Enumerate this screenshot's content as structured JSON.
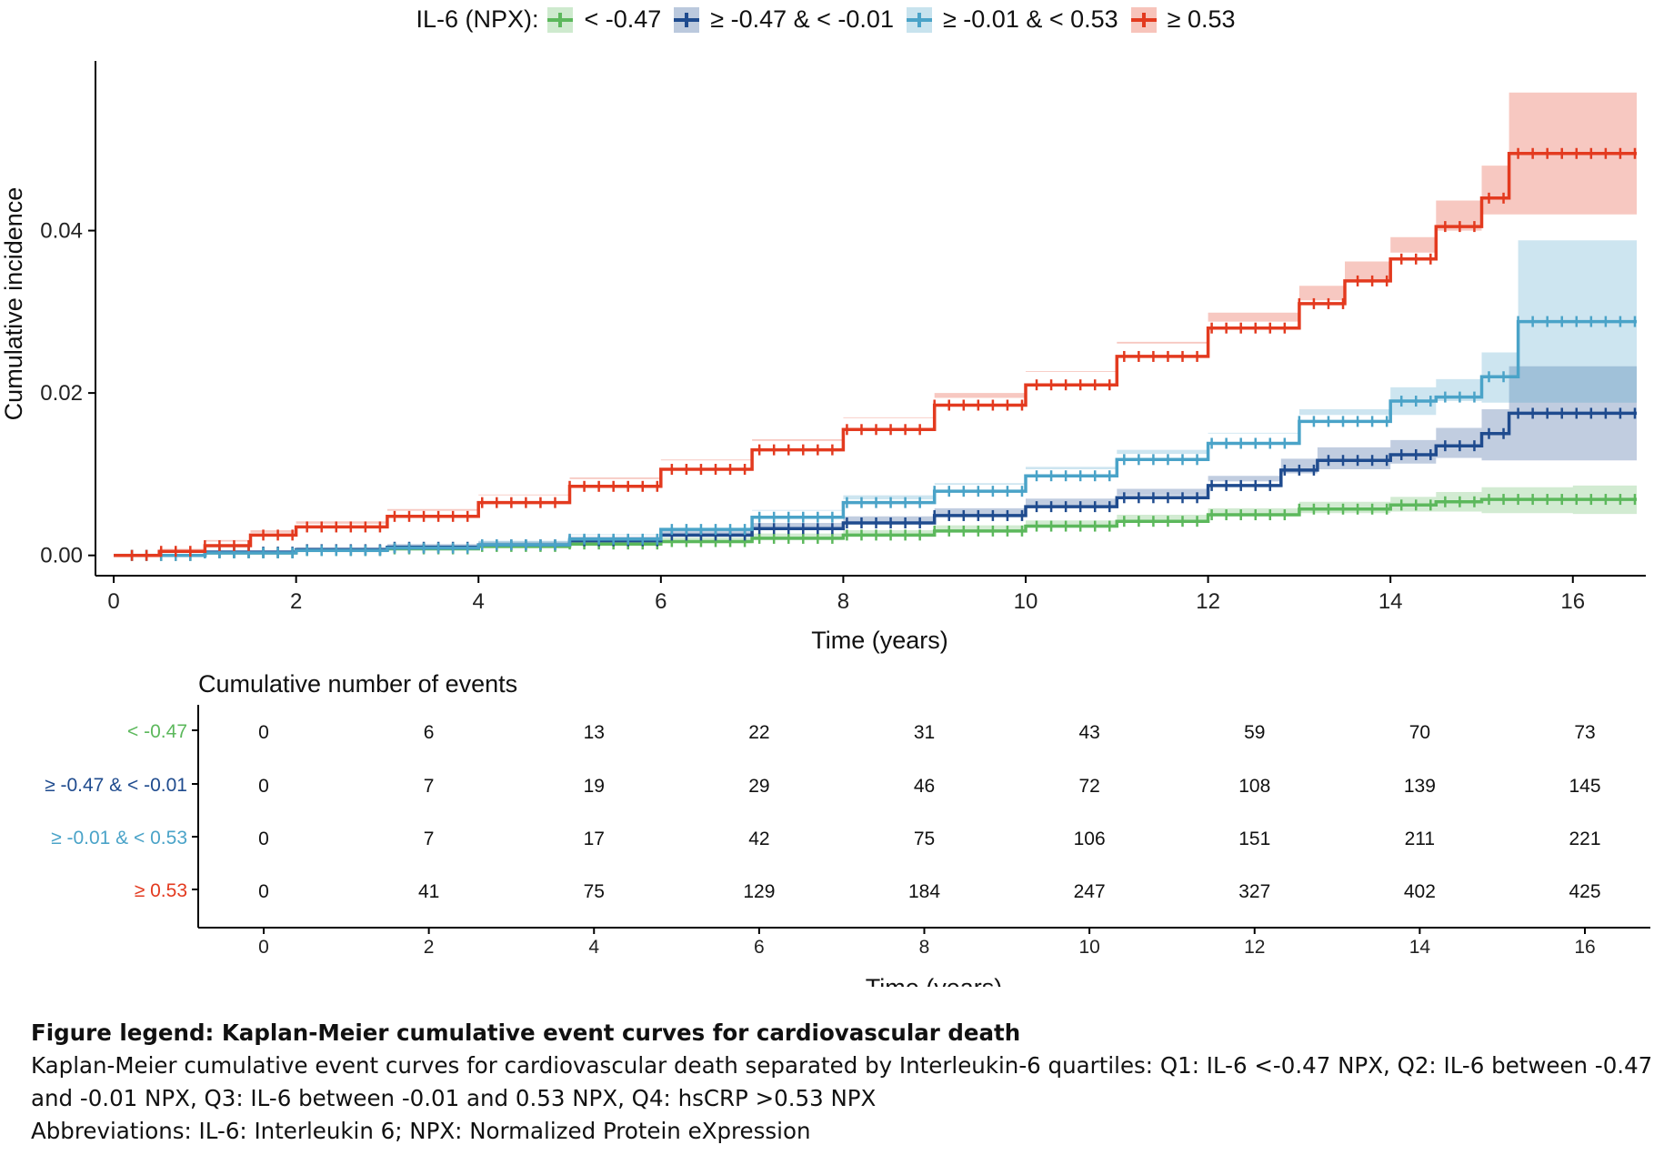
{
  "legend": {
    "title": "IL-6 (NPX):",
    "entries": [
      {
        "label": "< -0.47",
        "color": "#5cb85c"
      },
      {
        "label": "≥ -0.47 & < -0.01",
        "color": "#1f4b8e"
      },
      {
        "label": "≥ -0.01 & < 0.53",
        "color": "#4aa3c8"
      },
      {
        "label": "≥ 0.53",
        "color": "#e33a1f"
      }
    ]
  },
  "chart_data": [
    {
      "type": "line",
      "title": "",
      "xlabel": "Time (years)",
      "ylabel": "Cumulative incidence",
      "xlim": [
        -0.2,
        16.8
      ],
      "ylim": [
        -0.0025,
        0.06
      ],
      "xticks": [
        0,
        2,
        4,
        6,
        8,
        10,
        12,
        14,
        16
      ],
      "yticks": [
        0.0,
        0.02,
        0.04
      ],
      "ytick_labels": [
        "0.00",
        "0.02",
        "0.04"
      ],
      "legend_position": "top",
      "grid": false,
      "series": [
        {
          "name": "< -0.47",
          "color": "#5cb85c",
          "x": [
            0,
            1,
            2,
            3,
            4,
            5,
            6,
            7,
            8,
            9,
            10,
            11,
            12,
            13,
            14,
            14.5,
            15,
            16,
            16.7
          ],
          "y": [
            0,
            0.0003,
            0.0006,
            0.0008,
            0.0011,
            0.0014,
            0.0017,
            0.0021,
            0.0025,
            0.003,
            0.0036,
            0.0042,
            0.005,
            0.0057,
            0.0062,
            0.0066,
            0.0069,
            0.0069,
            0.0069
          ],
          "ci_half_width": [
            0,
            0.0002,
            0.0003,
            0.0004,
            0.0004,
            0.0005,
            0.0005,
            0.0006,
            0.0006,
            0.0007,
            0.0007,
            0.0008,
            0.0008,
            0.0009,
            0.001,
            0.0012,
            0.0015,
            0.0017,
            0.0018
          ]
        },
        {
          "name": "≥ -0.47 & < -0.01",
          "color": "#1f4b8e",
          "x": [
            0,
            1,
            2,
            3,
            4,
            5,
            6,
            7,
            8,
            9,
            10,
            11,
            12,
            12.8,
            13.2,
            14,
            14.5,
            15.0,
            15.3,
            16.7
          ],
          "y": [
            0,
            0.0004,
            0.0007,
            0.001,
            0.0013,
            0.0018,
            0.0025,
            0.0033,
            0.004,
            0.0049,
            0.006,
            0.0071,
            0.0086,
            0.0105,
            0.0117,
            0.0124,
            0.0135,
            0.015,
            0.0175,
            0.0175
          ],
          "ci_half_width": [
            0,
            0.0002,
            0.0003,
            0.0004,
            0.0004,
            0.0005,
            0.0006,
            0.0007,
            0.0008,
            0.0009,
            0.001,
            0.0011,
            0.0012,
            0.0014,
            0.0016,
            0.0018,
            0.0022,
            0.003,
            0.0058,
            0.0058
          ]
        },
        {
          "name": "≥ -0.01 & < 0.53",
          "color": "#4aa3c8",
          "x": [
            0,
            1,
            2,
            3,
            4,
            5,
            6,
            7,
            8,
            9,
            10,
            11,
            12,
            13,
            14,
            14.5,
            15.0,
            15.4,
            16.7
          ],
          "y": [
            0,
            0.0003,
            0.0006,
            0.0009,
            0.0013,
            0.002,
            0.0032,
            0.0047,
            0.0065,
            0.0079,
            0.0098,
            0.0118,
            0.0138,
            0.0165,
            0.019,
            0.0195,
            0.022,
            0.0288,
            0.0288
          ],
          "ci_half_width": [
            0,
            0.0002,
            0.0003,
            0.0004,
            0.0005,
            0.0006,
            0.0007,
            0.0008,
            0.0009,
            0.001,
            0.0011,
            0.0012,
            0.0013,
            0.0015,
            0.0017,
            0.0022,
            0.003,
            0.01,
            0.01
          ]
        },
        {
          "name": "≥ 0.53",
          "color": "#e33a1f",
          "x": [
            0,
            0.5,
            1,
            1.5,
            2,
            3,
            4,
            5,
            6,
            7,
            8,
            9,
            10,
            11,
            12,
            13,
            13.5,
            14,
            14.5,
            15,
            15.3,
            16.7
          ],
          "y": [
            0,
            0.0005,
            0.0012,
            0.0025,
            0.0035,
            0.0048,
            0.0065,
            0.0085,
            0.0106,
            0.013,
            0.0155,
            0.0185,
            0.021,
            0.0245,
            0.028,
            0.031,
            0.0338,
            0.0365,
            0.0405,
            0.044,
            0.0495,
            0.0495
          ],
          "ci_half_width": [
            0,
            0.0003,
            0.0005,
            0.0006,
            0.0007,
            0.0009,
            0.001,
            0.0011,
            0.0012,
            0.0013,
            0.0014,
            0.0015,
            0.0016,
            0.0018,
            0.0019,
            0.0022,
            0.0024,
            0.0027,
            0.0032,
            0.004,
            0.0075,
            0.0075
          ]
        }
      ]
    },
    {
      "type": "table",
      "title": "Cumulative number of events",
      "xlabel": "Time (years)",
      "columns": [
        0,
        2,
        4,
        6,
        8,
        10,
        12,
        14,
        16
      ],
      "rows": [
        {
          "label": "< -0.47",
          "color": "#5cb85c",
          "values": [
            0,
            6,
            13,
            22,
            31,
            43,
            59,
            70,
            73
          ]
        },
        {
          "label": "≥ -0.47 & < -0.01",
          "color": "#1f4b8e",
          "values": [
            0,
            7,
            19,
            29,
            46,
            72,
            108,
            139,
            145
          ]
        },
        {
          "label": "≥ -0.01 & < 0.53",
          "color": "#4aa3c8",
          "values": [
            0,
            7,
            17,
            42,
            75,
            106,
            151,
            211,
            221
          ]
        },
        {
          "label": "≥ 0.53",
          "color": "#e33a1f",
          "values": [
            0,
            41,
            75,
            129,
            184,
            247,
            327,
            402,
            425
          ]
        }
      ]
    }
  ],
  "caption": {
    "title": "Figure legend: Kaplan-Meier cumulative event curves for cardiovascular death",
    "line1": "Kaplan-Meier cumulative event curves for cardiovascular death separated by Interleukin-6 quartiles: Q1: IL-6 <-0.47 NPX, Q2: IL-6 between -0.47 and -0.01 NPX, Q3: IL-6 between -0.01 and 0.53 NPX, Q4: hsCRP >0.53 NPX",
    "line2": "Abbreviations: IL-6: Interleukin 6; NPX: Normalized Protein eXpression"
  }
}
